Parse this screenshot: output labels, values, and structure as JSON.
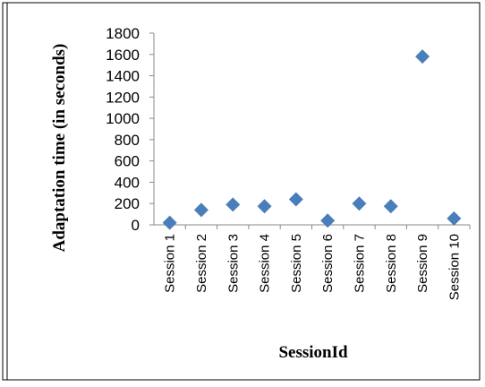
{
  "chart_data": {
    "type": "line",
    "x_label": "SessionId",
    "y_label": "Adaptation time (in seconds)",
    "categories": [
      "Session 1",
      "Session 2",
      "Session 3",
      "Session 4",
      "Session 5",
      "Session 6",
      "Session 7",
      "Session 8",
      "Session 9",
      "Session 10"
    ],
    "series": [
      {
        "color": "#4a7ebb",
        "values": [
          20,
          140,
          190,
          175,
          240,
          40,
          200,
          175,
          1580,
          60
        ]
      }
    ],
    "ylim": [
      0,
      1800
    ],
    "yticks": [
      0,
      200,
      400,
      600,
      800,
      1000,
      1200,
      1400,
      1600,
      1800
    ],
    "grid": false
  }
}
